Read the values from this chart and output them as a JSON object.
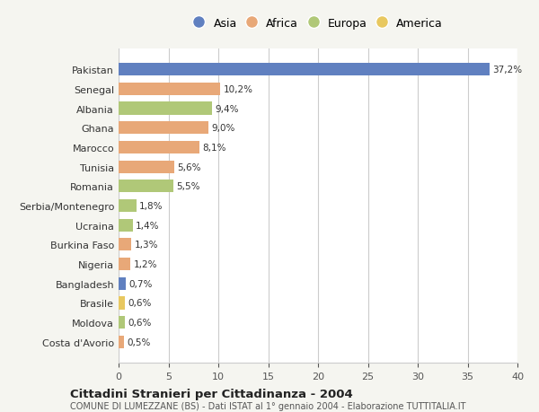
{
  "countries": [
    "Pakistan",
    "Senegal",
    "Albania",
    "Ghana",
    "Marocco",
    "Tunisia",
    "Romania",
    "Serbia/Montenegro",
    "Ucraina",
    "Burkina Faso",
    "Nigeria",
    "Bangladesh",
    "Brasile",
    "Moldova",
    "Costa d'Avorio"
  ],
  "values": [
    37.2,
    10.2,
    9.4,
    9.0,
    8.1,
    5.6,
    5.5,
    1.8,
    1.4,
    1.3,
    1.2,
    0.7,
    0.6,
    0.6,
    0.5
  ],
  "labels": [
    "37,2%",
    "10,2%",
    "9,4%",
    "9,0%",
    "8,1%",
    "5,6%",
    "5,5%",
    "1,8%",
    "1,4%",
    "1,3%",
    "1,2%",
    "0,7%",
    "0,6%",
    "0,6%",
    "0,5%"
  ],
  "continents": [
    "Asia",
    "Africa",
    "Europa",
    "Africa",
    "Africa",
    "Africa",
    "Europa",
    "Europa",
    "Europa",
    "Africa",
    "Africa",
    "Asia",
    "America",
    "Europa",
    "Africa"
  ],
  "colors": {
    "Asia": "#6080c0",
    "Africa": "#e8a878",
    "Europa": "#b0c878",
    "America": "#e8c860"
  },
  "legend_order": [
    "Asia",
    "Africa",
    "Europa",
    "America"
  ],
  "title_main": "Cittadini Stranieri per Cittadinanza - 2004",
  "title_sub": "COMUNE DI LUMEZZANE (BS) - Dati ISTAT al 1° gennaio 2004 - Elaborazione TUTTITALIA.IT",
  "xlim": [
    0,
    40
  ],
  "xticks": [
    0,
    5,
    10,
    15,
    20,
    25,
    30,
    35,
    40
  ],
  "background_color": "#f5f5f0",
  "plot_background": "#ffffff",
  "grid_color": "#cccccc"
}
